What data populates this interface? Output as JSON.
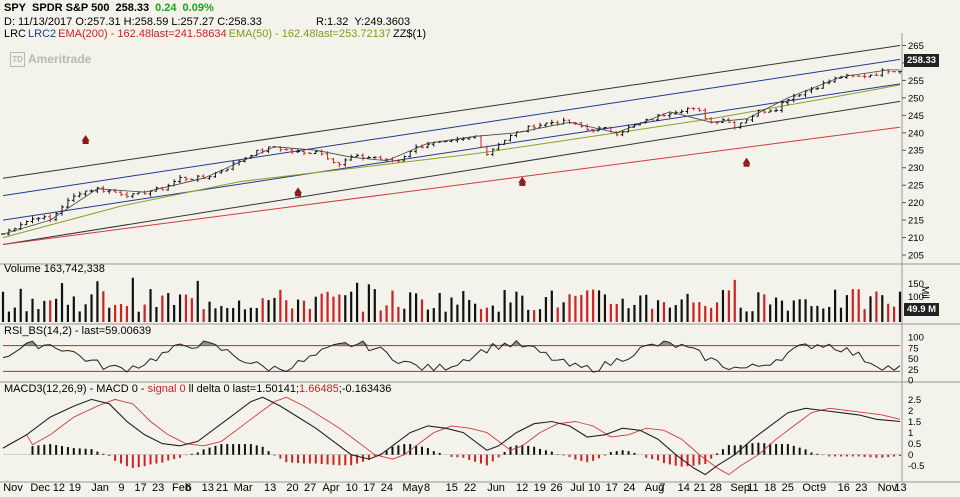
{
  "header": {
    "symbol": "SPY",
    "name": "SPDR S&P 500",
    "last": "258.33",
    "change": "0.24",
    "change_pct": "0.09%",
    "ohlc": "D: 11/13/2017 O:257.31 H:258.59 L:257.27 C:258.33",
    "rsi": "R:1.32",
    "y": "Y:249.3603"
  },
  "legend": {
    "lrc": "LRC",
    "lrc2": "LRC2",
    "ema200": "EMA(200) - 162.48last=241.58634",
    "ema50": "EMA(50) - 162.48last=253.72137",
    "zz": "ZZ$(1)"
  },
  "logo": {
    "letters": "TD",
    "name": "Ameritrade"
  },
  "price_tag": "258.33",
  "volume_tag": "49.9 M",
  "volume_label": "Volume 163,742,338",
  "volume_unit": "Mil",
  "rsi_label": "RSI_BS(14,2) - last=59.00639",
  "macd_label": {
    "prefix": "MACD3(12,26,9) - MACD 0 - ",
    "signal": "signal 0",
    "middle": " ll delta 0 last=1.50141;",
    "sig_val": "1.66485",
    "end": ";-0.163436"
  },
  "x_labels": [
    "Nov",
    "Dec",
    "12",
    "19",
    "Jan",
    "9",
    "17",
    "23",
    "Feb",
    "6",
    "13",
    "21",
    "Mar",
    "13",
    "20",
    "27",
    "Apr",
    "10",
    "17",
    "24",
    "May",
    "8",
    "15",
    "22",
    "Jun",
    "12",
    "19",
    "26",
    "Jul",
    "10",
    "17",
    "24",
    "Aug",
    "7",
    "14",
    "21",
    "28",
    "Sep",
    "11",
    "18",
    "25",
    "Oct",
    "9",
    "16",
    "23",
    "Nov",
    "13"
  ],
  "chart_data": [
    {
      "type": "line",
      "title": "SPY SPDR S&P 500",
      "y_ticks": [
        205,
        210,
        215,
        220,
        225,
        230,
        235,
        240,
        245,
        250,
        255,
        260,
        265
      ],
      "ylim": [
        203,
        268
      ],
      "series_close_points": [
        [
          0,
          211
        ],
        [
          3,
          214
        ],
        [
          6,
          216
        ],
        [
          8,
          215
        ],
        [
          10,
          219
        ],
        [
          13,
          223
        ],
        [
          16,
          224
        ],
        [
          19,
          223
        ],
        [
          22,
          222
        ],
        [
          24,
          223
        ],
        [
          27,
          224
        ],
        [
          30,
          227
        ],
        [
          34,
          227
        ],
        [
          38,
          230
        ],
        [
          42,
          234
        ],
        [
          46,
          236
        ],
        [
          48,
          235
        ],
        [
          51,
          234
        ],
        [
          53,
          235
        ],
        [
          55,
          233
        ],
        [
          57,
          231
        ],
        [
          59,
          233
        ],
        [
          61,
          233
        ],
        [
          63,
          233
        ],
        [
          65,
          232
        ],
        [
          67,
          232
        ],
        [
          69,
          235
        ],
        [
          72,
          237
        ],
        [
          75,
          237
        ],
        [
          78,
          238
        ],
        [
          80,
          239
        ],
        [
          82,
          234
        ],
        [
          84,
          237
        ],
        [
          87,
          240
        ],
        [
          90,
          242
        ],
        [
          93,
          243
        ],
        [
          96,
          243
        ],
        [
          99,
          241
        ],
        [
          102,
          241
        ],
        [
          104,
          240
        ],
        [
          107,
          242
        ],
        [
          110,
          244
        ],
        [
          113,
          246
        ],
        [
          116,
          247
        ],
        [
          118,
          246
        ],
        [
          120,
          243
        ],
        [
          122,
          244
        ],
        [
          124,
          242
        ],
        [
          126,
          244
        ],
        [
          128,
          246
        ],
        [
          131,
          247
        ],
        [
          133,
          250
        ],
        [
          136,
          252
        ],
        [
          139,
          254
        ],
        [
          142,
          256
        ],
        [
          145,
          256
        ],
        [
          148,
          257
        ],
        [
          150,
          258
        ],
        [
          152,
          258
        ]
      ],
      "ema200": [
        [
          0,
          208
        ],
        [
          152,
          241.6
        ]
      ],
      "ema50": [
        [
          0,
          210
        ],
        [
          20,
          219
        ],
        [
          40,
          226
        ],
        [
          60,
          230
        ],
        [
          80,
          234
        ],
        [
          100,
          239
        ],
        [
          120,
          244
        ],
        [
          140,
          250
        ],
        [
          152,
          253.7
        ]
      ],
      "lrc_mid": [
        [
          0,
          215
        ],
        [
          152,
          254
        ]
      ],
      "lrc_inner": [
        [
          0,
          222
        ],
        [
          152,
          261
        ]
      ],
      "lrc_outer": [
        [
          0,
          227
        ],
        [
          152,
          265
        ]
      ],
      "lrc_lower": [
        [
          0,
          208
        ],
        [
          152,
          249
        ]
      ],
      "markers": [
        {
          "x": 14,
          "y": 238.5
        },
        {
          "x": 50,
          "y": 223.5
        },
        {
          "x": 88,
          "y": 226.5
        },
        {
          "x": 126,
          "y": 232
        }
      ]
    },
    {
      "type": "bar",
      "title": "Volume 163,742,338",
      "y_ticks": [
        50,
        100,
        150
      ],
      "ylim": [
        0,
        180
      ],
      "last": "49.9 M"
    },
    {
      "type": "line",
      "title": "RSI_BS(14,2)",
      "y_ticks": [
        0,
        25,
        50,
        75,
        100
      ],
      "ylim": [
        0,
        100
      ],
      "levels": [
        20,
        80
      ]
    },
    {
      "type": "line",
      "title": "MACD3(12,26,9)",
      "y_ticks": [
        -0.5,
        0,
        0.5,
        1,
        1.5,
        2,
        2.5
      ],
      "ylim": [
        -1.1,
        2.7
      ],
      "macd_points": [
        [
          0,
          0.3
        ],
        [
          4,
          0.9
        ],
        [
          8,
          1.7
        ],
        [
          12,
          2.2
        ],
        [
          15,
          2.5
        ],
        [
          18,
          2.3
        ],
        [
          21,
          1.5
        ],
        [
          24,
          0.9
        ],
        [
          27,
          0.5
        ],
        [
          30,
          0.4
        ],
        [
          33,
          0.6
        ],
        [
          36,
          1.2
        ],
        [
          39,
          1.8
        ],
        [
          42,
          2.4
        ],
        [
          44,
          2.6
        ],
        [
          47,
          2.2
        ],
        [
          50,
          1.7
        ],
        [
          53,
          1.2
        ],
        [
          56,
          0.6
        ],
        [
          59,
          0.0
        ],
        [
          62,
          -0.2
        ],
        [
          64,
          0.0
        ],
        [
          66,
          0.4
        ],
        [
          69,
          1.0
        ],
        [
          72,
          1.3
        ],
        [
          75,
          1.2
        ],
        [
          78,
          1.0
        ],
        [
          80,
          0.6
        ],
        [
          82,
          0.2
        ],
        [
          84,
          0.4
        ],
        [
          87,
          1.0
        ],
        [
          90,
          1.4
        ],
        [
          93,
          1.5
        ],
        [
          96,
          1.3
        ],
        [
          99,
          0.8
        ],
        [
          102,
          0.9
        ],
        [
          105,
          1.2
        ],
        [
          108,
          1.1
        ],
        [
          111,
          0.7
        ],
        [
          114,
          0.0
        ],
        [
          117,
          -0.6
        ],
        [
          119,
          -0.9
        ],
        [
          121,
          -0.5
        ],
        [
          124,
          0.0
        ],
        [
          127,
          0.7
        ],
        [
          130,
          1.3
        ],
        [
          133,
          1.9
        ],
        [
          136,
          2.1
        ],
        [
          139,
          2.0
        ],
        [
          142,
          1.9
        ],
        [
          145,
          1.8
        ],
        [
          148,
          1.6
        ],
        [
          152,
          1.5
        ]
      ]
    }
  ]
}
